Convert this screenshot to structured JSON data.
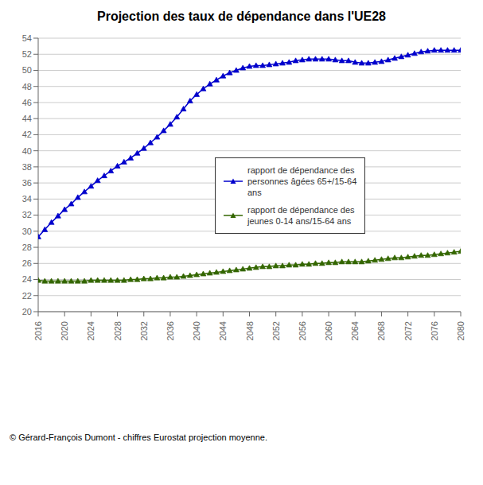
{
  "chart_data": {
    "type": "line",
    "title": "Projection des taux de dépendance dans l'UE28",
    "annotations": [
      "© Gérard-François Dumont - chiffres Eurostat projection moyenne."
    ],
    "x": [
      2016,
      2017,
      2018,
      2019,
      2020,
      2021,
      2022,
      2023,
      2024,
      2025,
      2026,
      2027,
      2028,
      2029,
      2030,
      2031,
      2032,
      2033,
      2034,
      2035,
      2036,
      2037,
      2038,
      2039,
      2040,
      2041,
      2042,
      2043,
      2044,
      2045,
      2046,
      2047,
      2048,
      2049,
      2050,
      2051,
      2052,
      2053,
      2054,
      2055,
      2056,
      2057,
      2058,
      2059,
      2060,
      2061,
      2062,
      2063,
      2064,
      2065,
      2066,
      2067,
      2068,
      2069,
      2070,
      2071,
      2072,
      2073,
      2074,
      2075,
      2076,
      2077,
      2078,
      2079,
      2080
    ],
    "series": [
      {
        "name": "rapport de dépendance des\npersonnes âgées 65+/15-64\nans",
        "color": "#0000cc",
        "marker": "triangle",
        "values": [
          29.3,
          30.2,
          31.1,
          31.9,
          32.7,
          33.4,
          34.2,
          34.9,
          35.6,
          36.3,
          36.9,
          37.5,
          38.1,
          38.6,
          39.1,
          39.7,
          40.3,
          41.0,
          41.7,
          42.5,
          43.3,
          44.2,
          45.2,
          46.2,
          47.0,
          47.7,
          48.3,
          48.8,
          49.3,
          49.7,
          50.0,
          50.3,
          50.5,
          50.6,
          50.6,
          50.7,
          50.8,
          50.9,
          51.0,
          51.2,
          51.3,
          51.4,
          51.4,
          51.4,
          51.4,
          51.3,
          51.2,
          51.2,
          51.0,
          50.9,
          50.9,
          51.0,
          51.1,
          51.3,
          51.5,
          51.7,
          51.9,
          52.1,
          52.3,
          52.4,
          52.5,
          52.5,
          52.5,
          52.5,
          52.5
        ]
      },
      {
        "name": "rapport de dépendance des\njeunes 0-14 ans/15-64 ans",
        "color": "#336600",
        "marker": "triangle",
        "values": [
          23.9,
          23.8,
          23.8,
          23.8,
          23.8,
          23.8,
          23.8,
          23.8,
          23.9,
          23.9,
          23.9,
          23.9,
          23.9,
          23.9,
          24.0,
          24.0,
          24.1,
          24.1,
          24.2,
          24.2,
          24.3,
          24.3,
          24.4,
          24.5,
          24.6,
          24.7,
          24.8,
          24.9,
          25.0,
          25.1,
          25.2,
          25.3,
          25.4,
          25.5,
          25.6,
          25.6,
          25.7,
          25.7,
          25.8,
          25.8,
          25.9,
          25.9,
          26.0,
          26.0,
          26.1,
          26.1,
          26.2,
          26.2,
          26.2,
          26.2,
          26.3,
          26.4,
          26.5,
          26.6,
          26.7,
          26.7,
          26.8,
          26.9,
          27.0,
          27.0,
          27.1,
          27.2,
          27.3,
          27.4,
          27.5
        ]
      }
    ],
    "xlim": [
      2016,
      2080
    ],
    "xticks": [
      2016,
      2020,
      2024,
      2028,
      2032,
      2036,
      2040,
      2044,
      2048,
      2052,
      2056,
      2060,
      2064,
      2068,
      2072,
      2076,
      2080
    ],
    "ylim": [
      20,
      54
    ],
    "yticks": [
      20,
      22,
      24,
      26,
      28,
      30,
      32,
      34,
      36,
      38,
      40,
      42,
      44,
      46,
      48,
      50,
      52,
      54
    ],
    "grid": "y",
    "legend": "center"
  }
}
